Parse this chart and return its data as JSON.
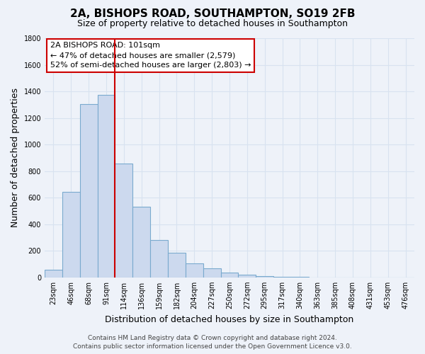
{
  "title": "2A, BISHOPS ROAD, SOUTHAMPTON, SO19 2FB",
  "subtitle": "Size of property relative to detached houses in Southampton",
  "xlabel": "Distribution of detached houses by size in Southampton",
  "ylabel": "Number of detached properties",
  "bar_color": "#ccd9ee",
  "bar_edge_color": "#7aaace",
  "categories": [
    "23sqm",
    "46sqm",
    "68sqm",
    "91sqm",
    "114sqm",
    "136sqm",
    "159sqm",
    "182sqm",
    "204sqm",
    "227sqm",
    "250sqm",
    "272sqm",
    "295sqm",
    "317sqm",
    "340sqm",
    "363sqm",
    "385sqm",
    "408sqm",
    "431sqm",
    "453sqm",
    "476sqm"
  ],
  "values": [
    55,
    645,
    1305,
    1375,
    855,
    530,
    280,
    185,
    105,
    68,
    35,
    22,
    10,
    5,
    3,
    1,
    0,
    0,
    0,
    0,
    0
  ],
  "vline_x": 3.5,
  "vline_color": "#cc0000",
  "annotation_title": "2A BISHOPS ROAD: 101sqm",
  "annotation_line1": "← 47% of detached houses are smaller (2,579)",
  "annotation_line2": "52% of semi-detached houses are larger (2,803) →",
  "annotation_box_color": "#ffffff",
  "annotation_box_edge": "#cc0000",
  "ylim": [
    0,
    1800
  ],
  "yticks": [
    0,
    200,
    400,
    600,
    800,
    1000,
    1200,
    1400,
    1600,
    1800
  ],
  "footer1": "Contains HM Land Registry data © Crown copyright and database right 2024.",
  "footer2": "Contains public sector information licensed under the Open Government Licence v3.0.",
  "background_color": "#eef2f9",
  "grid_color": "#d8e2f0",
  "title_fontsize": 11,
  "subtitle_fontsize": 9,
  "axis_label_fontsize": 9,
  "tick_fontsize": 7,
  "annotation_fontsize": 8,
  "footer_fontsize": 6.5
}
